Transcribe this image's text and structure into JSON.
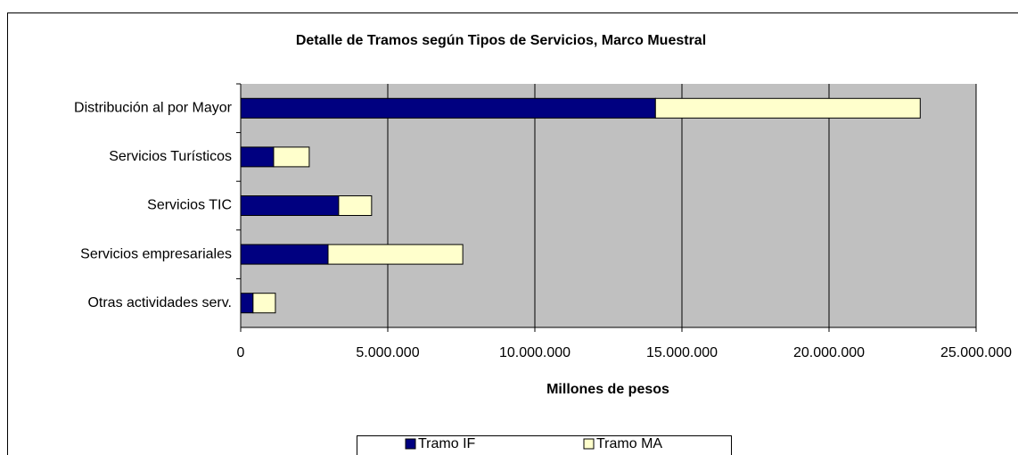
{
  "chart_data": {
    "type": "stacked_barh",
    "title": "Detalle de Tramos según Tipos de Servicios, Marco Muestral",
    "xlabel": "Millones de pesos",
    "categories": [
      "Distribución al por Mayor",
      "Servicios Turísticos",
      "Servicios TIC",
      "Servicios empresariales",
      "Otras actividades serv."
    ],
    "series": [
      {
        "name": "Tramo IF",
        "color": "#000080",
        "values": [
          14100000,
          1120000,
          3330000,
          2970000,
          420000
        ]
      },
      {
        "name": "Tramo MA",
        "color": "#ffffcc",
        "values": [
          9000000,
          1210000,
          1120000,
          4580000,
          760000
        ]
      }
    ],
    "xlim": [
      0,
      25000000
    ],
    "xticks": [
      0,
      {
        "value": 5000000,
        "label": "5.000.000"
      },
      {
        "value": 10000000,
        "label": "10.000.000"
      },
      {
        "value": 15000000,
        "label": "15.000.000"
      },
      {
        "value": 20000000,
        "label": "20.000.000"
      },
      {
        "value": 25000000,
        "label": "25.000.000"
      }
    ],
    "grid": true,
    "plot_background": "#c0c0c0",
    "legend": "bottom"
  }
}
